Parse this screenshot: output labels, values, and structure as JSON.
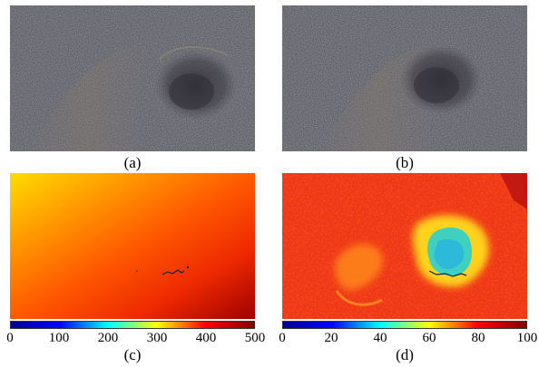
{
  "panels": {
    "a": {
      "label": "(a)"
    },
    "b": {
      "label": "(b)"
    },
    "c": {
      "label": "(c)"
    },
    "d": {
      "label": "(d)"
    }
  },
  "colorbar_c": {
    "ticks": [
      "0",
      "100",
      "200",
      "300",
      "400",
      "500"
    ],
    "range": [
      0,
      500
    ]
  },
  "colorbar_d": {
    "ticks": [
      "0",
      "20",
      "40",
      "60",
      "80",
      "100"
    ],
    "range": [
      0,
      100
    ]
  },
  "colors": {
    "asphalt": "#5b5c63",
    "pothole": "#3d3b43",
    "jet_low": "#00008f",
    "jet_high": "#800000"
  }
}
